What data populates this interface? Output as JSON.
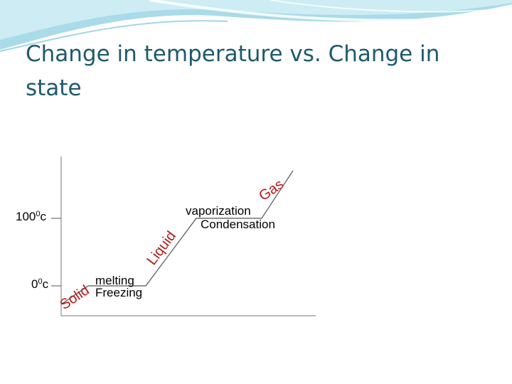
{
  "slide": {
    "title": "Change in temperature vs. Change in state"
  },
  "diagram": {
    "temp_high": {
      "base": "100",
      "sup": "0",
      "unit": "c"
    },
    "temp_low": {
      "base": "0",
      "sup": "0",
      "unit": "c"
    },
    "phases": {
      "solid": "Solid",
      "liquid": "Liquid",
      "gas": "Gas"
    },
    "transitions": {
      "melting": "melting",
      "freezing": "Freezing",
      "vaporization": "vaporization",
      "condensation": "Condensation"
    },
    "colors": {
      "title": "#1d5a6c",
      "phase_labels": "#b31b1b",
      "lines": "#555555"
    }
  }
}
